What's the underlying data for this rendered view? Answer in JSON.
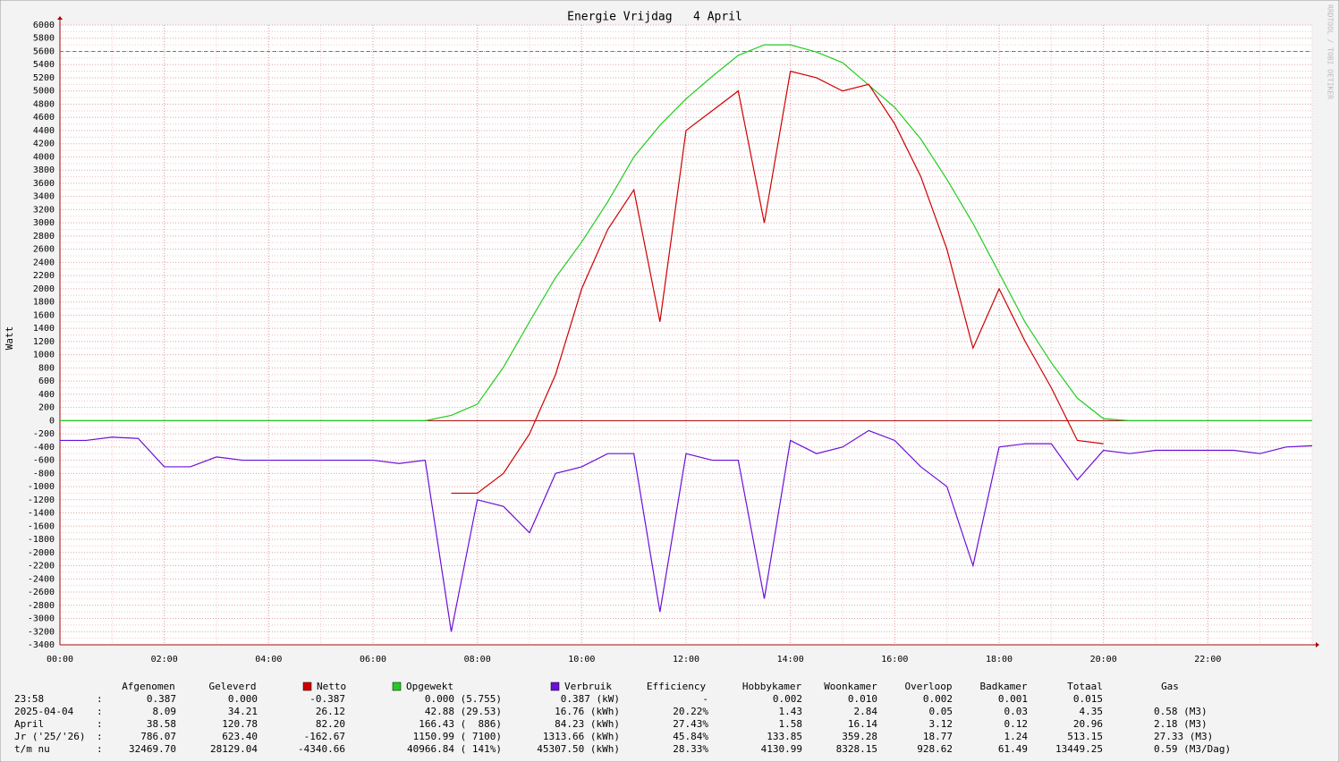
{
  "chart_data": {
    "type": "line",
    "title": "Energie Vrijdag   4 April",
    "y_label": "Watt",
    "watermark": "RRDTOOL / TOBI OETIKER",
    "x": [
      0,
      0.5,
      1,
      1.5,
      2,
      2.5,
      3,
      3.5,
      4,
      4.5,
      5,
      5.5,
      6,
      6.5,
      7,
      7.5,
      8,
      8.5,
      9,
      9.5,
      10,
      10.5,
      11,
      11.5,
      12,
      12.5,
      13,
      13.5,
      14,
      14.5,
      15,
      15.5,
      16,
      16.5,
      17,
      17.5,
      18,
      18.5,
      19,
      19.5,
      20,
      20.5,
      21,
      21.5,
      22,
      22.5,
      23,
      23.5,
      24
    ],
    "xlim": [
      0,
      24
    ],
    "xticks": [
      {
        "value": 0,
        "label": "00:00"
      },
      {
        "value": 2,
        "label": "02:00"
      },
      {
        "value": 4,
        "label": "04:00"
      },
      {
        "value": 6,
        "label": "06:00"
      },
      {
        "value": 8,
        "label": "08:00"
      },
      {
        "value": 10,
        "label": "10:00"
      },
      {
        "value": 12,
        "label": "12:00"
      },
      {
        "value": 14,
        "label": "14:00"
      },
      {
        "value": 16,
        "label": "16:00"
      },
      {
        "value": 18,
        "label": "18:00"
      },
      {
        "value": 20,
        "label": "20:00"
      },
      {
        "value": 22,
        "label": "22:00"
      }
    ],
    "ylim": [
      -3400,
      6000
    ],
    "yticks": [
      -3400,
      -3200,
      -3000,
      -2800,
      -2600,
      -2400,
      -2200,
      -2000,
      -1800,
      -1600,
      -1400,
      -1200,
      -1000,
      -800,
      -600,
      -400,
      -200,
      0,
      200,
      400,
      600,
      800,
      1000,
      1200,
      1400,
      1600,
      1800,
      2000,
      2200,
      2400,
      2600,
      2800,
      3000,
      3200,
      3400,
      3600,
      3800,
      4000,
      4200,
      4400,
      4600,
      4800,
      5000,
      5200,
      5400,
      5600,
      5800,
      6000
    ],
    "grid": true,
    "ref_line": 5600,
    "series": [
      {
        "name": "Netto",
        "color": "#cc0000",
        "values": [
          null,
          null,
          null,
          null,
          null,
          null,
          null,
          null,
          null,
          null,
          null,
          null,
          null,
          null,
          null,
          -1100,
          -1100,
          -800,
          -200,
          700,
          2000,
          2900,
          3500,
          1500,
          4400,
          4700,
          5000,
          3000,
          5300,
          5200,
          5000,
          5100,
          4500,
          3700,
          2600,
          1100,
          2000,
          1200,
          500,
          -300,
          -350,
          null,
          null,
          null,
          null,
          null,
          null,
          null,
          null
        ]
      },
      {
        "name": "Opgewekt",
        "color": "#22cc22",
        "values": [
          0,
          0,
          0,
          0,
          0,
          0,
          0,
          0,
          0,
          0,
          0,
          0,
          0,
          0,
          0,
          80,
          250,
          810,
          1500,
          2170,
          2710,
          3320,
          4000,
          4480,
          4880,
          5220,
          5540,
          5700,
          5700,
          5590,
          5430,
          5090,
          4750,
          4270,
          3660,
          2990,
          2240,
          1490,
          880,
          340,
          30,
          0,
          0,
          0,
          0,
          0,
          0,
          0,
          0
        ]
      },
      {
        "name": "Verbruik",
        "color": "#6a0fd8",
        "values": [
          -300,
          -300,
          -250,
          -270,
          -700,
          -700,
          -550,
          -600,
          -600,
          -600,
          -600,
          -600,
          -600,
          -650,
          -600,
          -3200,
          -1200,
          -1300,
          -1700,
          -800,
          -700,
          -500,
          -500,
          -2900,
          -500,
          -600,
          -600,
          -2700,
          -300,
          -500,
          -400,
          -150,
          -300,
          -700,
          -1000,
          -2200,
          -400,
          -350,
          -350,
          -900,
          -450,
          -500,
          -450,
          -450,
          -450,
          -450,
          -500,
          -400,
          -380
        ]
      }
    ]
  },
  "table": {
    "columns_left": [
      "Afgenomen",
      "Geleverd"
    ],
    "columns_right": [
      "Efficiency",
      "Hobbykamer",
      "Woonkamer",
      "Overloop",
      "Badkamer",
      "Totaal",
      "Gas"
    ],
    "separator": ":",
    "rows": [
      {
        "label": "23:58",
        "values": [
          "0.387",
          "0.000",
          "-0.387",
          "0.000 (5.755)",
          "0.387 (kW)",
          "-",
          "0.002",
          "0.010",
          "0.002",
          "0.001",
          "0.015"
        ]
      },
      {
        "label": "2025-04-04",
        "values": [
          "8.09",
          "34.21",
          "26.12",
          "42.88 (29.53)",
          "16.76 (kWh)",
          "20.22%",
          "1.43",
          "2.84",
          "0.05",
          "0.03",
          "4.35",
          "0.58 (M3)"
        ]
      },
      {
        "label": "April",
        "values": [
          "38.58",
          "120.78",
          "82.20",
          "166.43 (  886)",
          "84.23 (kWh)",
          "27.43%",
          "1.58",
          "16.14",
          "3.12",
          "0.12",
          "20.96",
          "2.18 (M3)"
        ]
      },
      {
        "label": "Jr ('25/'26)",
        "values": [
          "786.07",
          "623.40",
          "-162.67",
          "1150.99 ( 7100)",
          "1313.66 (kWh)",
          "45.84%",
          "133.85",
          "359.28",
          "18.77",
          "1.24",
          "513.15",
          "27.33 (M3)"
        ]
      },
      {
        "label": "t/m nu",
        "values": [
          "32469.70",
          "28129.04",
          "-4340.66",
          "40966.84 ( 141%)",
          "45307.50 (kWh)",
          "28.33%",
          "4130.99",
          "8328.15",
          "928.62",
          "61.49",
          "13449.25",
          "0.59 (M3/Dag)"
        ]
      }
    ]
  }
}
